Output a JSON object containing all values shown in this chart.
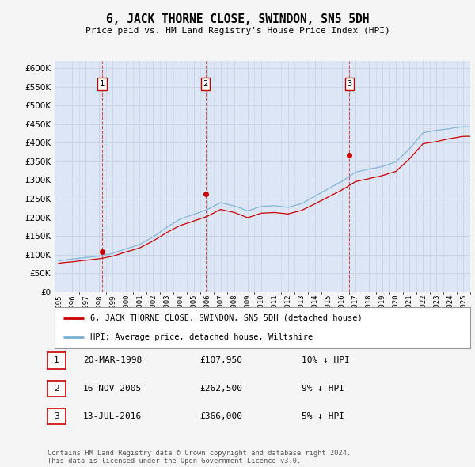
{
  "title": "6, JACK THORNE CLOSE, SWINDON, SN5 5DH",
  "subtitle": "Price paid vs. HM Land Registry's House Price Index (HPI)",
  "ylim": [
    0,
    620000
  ],
  "yticks": [
    0,
    50000,
    100000,
    150000,
    200000,
    250000,
    300000,
    350000,
    400000,
    450000,
    500000,
    550000,
    600000
  ],
  "ytick_labels": [
    "£0",
    "£50K",
    "£100K",
    "£150K",
    "£200K",
    "£250K",
    "£300K",
    "£350K",
    "£400K",
    "£450K",
    "£500K",
    "£550K",
    "£600K"
  ],
  "plot_bg_color": "#dce6f5",
  "fig_bg_color": "#f5f5f5",
  "grid_color": "#c8d4e8",
  "legend_label_red": "6, JACK THORNE CLOSE, SWINDON, SN5 5DH (detached house)",
  "legend_label_blue": "HPI: Average price, detached house, Wiltshire",
  "transactions": [
    {
      "num": 1,
      "date": "20-MAR-1998",
      "price": 107950,
      "year_x": 1998.21
    },
    {
      "num": 2,
      "date": "16-NOV-2005",
      "price": 262500,
      "year_x": 2005.88
    },
    {
      "num": 3,
      "date": "13-JUL-2016",
      "price": 366000,
      "year_x": 2016.54
    }
  ],
  "table_rows": [
    {
      "num": "1",
      "date": "20-MAR-1998",
      "price": "£107,950",
      "pct": "10% ↓ HPI"
    },
    {
      "num": "2",
      "date": "16-NOV-2005",
      "price": "£262,500",
      "pct": "9% ↓ HPI"
    },
    {
      "num": "3",
      "date": "13-JUL-2016",
      "price": "£366,000",
      "pct": "5% ↓ HPI"
    }
  ],
  "footer": "Contains HM Land Registry data © Crown copyright and database right 2024.\nThis data is licensed under the Open Government Licence v3.0.",
  "red_line_color": "#cc0000",
  "blue_line_color": "#7ab0d4",
  "marker_box_color": "#cc0000",
  "dashed_line_color": "#cc4444",
  "xlim": [
    1994.7,
    2025.5
  ],
  "xticks": [
    1995,
    1996,
    1997,
    1998,
    1999,
    2000,
    2001,
    2002,
    2003,
    2004,
    2005,
    2006,
    2007,
    2008,
    2009,
    2010,
    2011,
    2012,
    2013,
    2014,
    2015,
    2016,
    2017,
    2018,
    2019,
    2020,
    2021,
    2022,
    2023,
    2024,
    2025
  ]
}
